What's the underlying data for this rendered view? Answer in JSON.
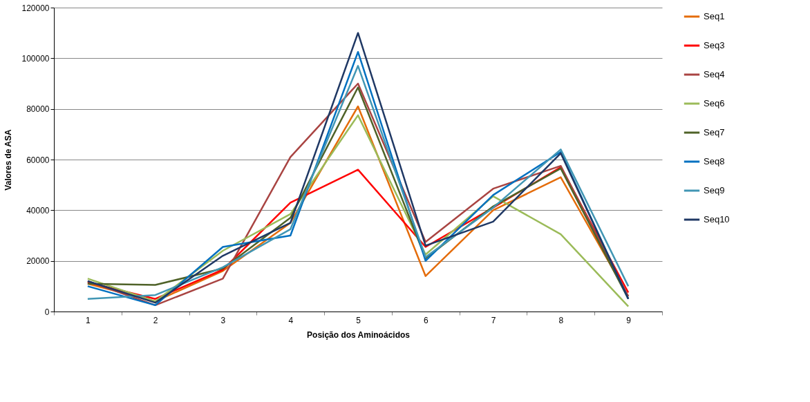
{
  "chart_data": {
    "type": "line",
    "xlabel": "Posição dos Aminoácidos",
    "ylabel": "Valores de ASA",
    "categories": [
      "1",
      "2",
      "3",
      "4",
      "5",
      "6",
      "7",
      "8",
      "9"
    ],
    "ylim": [
      0,
      120000
    ],
    "yticks": [
      0,
      20000,
      40000,
      60000,
      80000,
      100000,
      120000
    ],
    "grid": "y",
    "legend": "right",
    "marker": "none",
    "line_style": "solid",
    "series": [
      {
        "name": "Seq1",
        "color": "#e46c0a",
        "values": [
          11000,
          4000,
          16000,
          35000,
          81000,
          14000,
          40000,
          53000,
          6000
        ]
      },
      {
        "name": "Seq3",
        "color": "#ff0000",
        "values": [
          11500,
          5000,
          16500,
          43000,
          56000,
          25500,
          41000,
          57000,
          7500
        ]
      },
      {
        "name": "Seq4",
        "color": "#a94442",
        "values": [
          12000,
          2500,
          13000,
          61000,
          90000,
          27500,
          48500,
          57500,
          6000
        ]
      },
      {
        "name": "Seq6",
        "color": "#9bbb59",
        "values": [
          13000,
          4000,
          24000,
          38500,
          77500,
          22500,
          45500,
          30500,
          2000
        ]
      },
      {
        "name": "Seq7",
        "color": "#4f6228",
        "values": [
          11000,
          10500,
          17000,
          37000,
          88500,
          21000,
          41500,
          56500,
          5000
        ]
      },
      {
        "name": "Seq8",
        "color": "#0070c0",
        "values": [
          10000,
          2500,
          25500,
          30000,
          102500,
          20000,
          46000,
          63000,
          5000
        ]
      },
      {
        "name": "Seq9",
        "color": "#4196b4",
        "values": [
          5000,
          6500,
          17500,
          32500,
          97000,
          21500,
          41000,
          64000,
          10000
        ]
      },
      {
        "name": "Seq10",
        "color": "#1f3864",
        "values": [
          12000,
          3500,
          22000,
          35000,
          110000,
          26000,
          35500,
          62500,
          5000
        ]
      }
    ]
  }
}
